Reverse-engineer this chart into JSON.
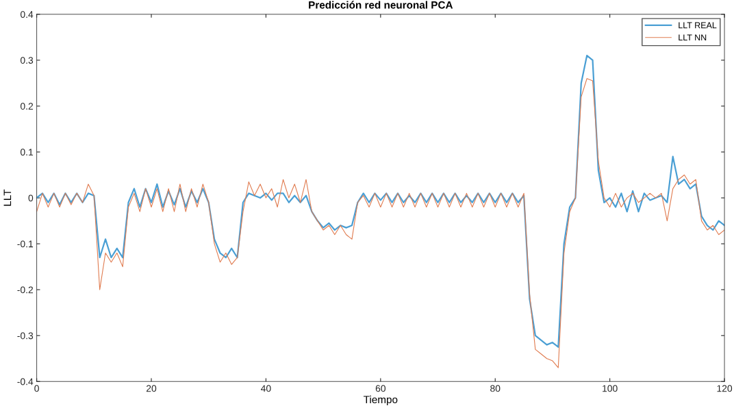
{
  "chart_data": {
    "type": "line",
    "title": "Predicción red neuronal PCA",
    "xlabel": "Tiempo",
    "ylabel": "LLT",
    "x": [
      0,
      1,
      2,
      3,
      4,
      5,
      6,
      7,
      8,
      9,
      10,
      11,
      12,
      13,
      14,
      15,
      16,
      17,
      18,
      19,
      20,
      21,
      22,
      23,
      24,
      25,
      26,
      27,
      28,
      29,
      30,
      31,
      32,
      33,
      34,
      35,
      36,
      37,
      38,
      39,
      40,
      41,
      42,
      43,
      44,
      45,
      46,
      47,
      48,
      49,
      50,
      51,
      52,
      53,
      54,
      55,
      56,
      57,
      58,
      59,
      60,
      61,
      62,
      63,
      64,
      65,
      66,
      67,
      68,
      69,
      70,
      71,
      72,
      73,
      74,
      75,
      76,
      77,
      78,
      79,
      80,
      81,
      82,
      83,
      84,
      85,
      86,
      87,
      88,
      89,
      90,
      91,
      92,
      93,
      94,
      95,
      96,
      97,
      98,
      99,
      100,
      101,
      102,
      103,
      104,
      105,
      106,
      107,
      108,
      109,
      110,
      111,
      112,
      113,
      114,
      115,
      116,
      117,
      118,
      119,
      120
    ],
    "series": [
      {
        "name": "LLT REAL",
        "color": "#4a9fd4",
        "values": [
          0.0,
          0.01,
          -0.01,
          0.01,
          -0.015,
          0.01,
          -0.01,
          0.01,
          -0.01,
          0.01,
          0.005,
          -0.13,
          -0.09,
          -0.13,
          -0.11,
          -0.13,
          -0.01,
          0.02,
          -0.02,
          0.02,
          -0.01,
          0.03,
          -0.02,
          0.015,
          -0.015,
          0.02,
          -0.02,
          0.015,
          -0.01,
          0.02,
          -0.01,
          -0.09,
          -0.12,
          -0.13,
          -0.11,
          -0.13,
          -0.01,
          0.01,
          0.005,
          0.0,
          0.01,
          -0.005,
          0.01,
          0.01,
          -0.01,
          0.005,
          -0.01,
          0.005,
          -0.03,
          -0.05,
          -0.065,
          -0.055,
          -0.07,
          -0.06,
          -0.065,
          -0.06,
          -0.01,
          0.01,
          -0.01,
          0.01,
          -0.005,
          0.01,
          -0.01,
          0.01,
          -0.01,
          0.005,
          -0.01,
          0.01,
          -0.01,
          0.01,
          -0.01,
          0.01,
          -0.01,
          0.01,
          -0.01,
          0.005,
          -0.01,
          0.01,
          -0.01,
          0.01,
          -0.01,
          0.01,
          -0.01,
          0.01,
          -0.01,
          0.005,
          -0.22,
          -0.3,
          -0.31,
          -0.32,
          -0.315,
          -0.325,
          -0.1,
          -0.02,
          0.0,
          0.25,
          0.31,
          0.3,
          0.06,
          -0.01,
          0.0,
          -0.02,
          0.01,
          -0.03,
          0.015,
          -0.03,
          0.01,
          -0.005,
          0.0,
          0.005,
          -0.01,
          0.09,
          0.03,
          0.04,
          0.02,
          0.03,
          -0.04,
          -0.06,
          -0.07,
          -0.05,
          -0.06
        ]
      },
      {
        "name": "LLT NN",
        "color": "#e07b4f",
        "values": [
          -0.03,
          0.01,
          -0.02,
          0.01,
          -0.02,
          0.01,
          -0.015,
          0.01,
          -0.01,
          0.03,
          0.005,
          -0.2,
          -0.12,
          -0.14,
          -0.12,
          -0.15,
          -0.02,
          0.01,
          -0.03,
          0.02,
          -0.02,
          0.02,
          -0.03,
          0.02,
          -0.03,
          0.03,
          -0.03,
          0.02,
          -0.02,
          0.03,
          -0.01,
          -0.1,
          -0.14,
          -0.12,
          -0.145,
          -0.13,
          -0.03,
          0.035,
          0.005,
          0.03,
          0.0,
          0.02,
          -0.02,
          0.04,
          0.0,
          0.03,
          -0.01,
          0.04,
          -0.03,
          -0.05,
          -0.07,
          -0.06,
          -0.08,
          -0.06,
          -0.08,
          -0.09,
          -0.01,
          0.005,
          -0.02,
          0.01,
          -0.02,
          0.01,
          -0.02,
          0.01,
          -0.02,
          0.01,
          -0.02,
          0.01,
          -0.02,
          0.01,
          -0.02,
          0.01,
          -0.02,
          0.01,
          -0.02,
          0.01,
          -0.02,
          0.01,
          -0.02,
          0.01,
          -0.02,
          0.01,
          -0.02,
          0.01,
          -0.02,
          0.01,
          -0.21,
          -0.33,
          -0.34,
          -0.35,
          -0.355,
          -0.37,
          -0.12,
          -0.03,
          0.0,
          0.22,
          0.26,
          0.255,
          0.08,
          0.0,
          -0.02,
          0.01,
          -0.02,
          0.0,
          0.01,
          -0.01,
          0.0,
          0.01,
          0.0,
          0.01,
          -0.05,
          0.02,
          0.04,
          0.05,
          0.03,
          0.04,
          -0.05,
          -0.07,
          -0.06,
          -0.08,
          -0.07
        ]
      }
    ],
    "xlim": [
      0,
      120
    ],
    "xticks": [
      0,
      20,
      40,
      60,
      80,
      100,
      120
    ],
    "ylim": [
      -0.4,
      0.4
    ],
    "yticks": [
      -0.4,
      -0.3,
      -0.2,
      -0.1,
      0,
      0.1,
      0.2,
      0.3,
      0.4
    ],
    "grid": false,
    "legend": "top right",
    "marker": "none",
    "line_style": "solid"
  }
}
